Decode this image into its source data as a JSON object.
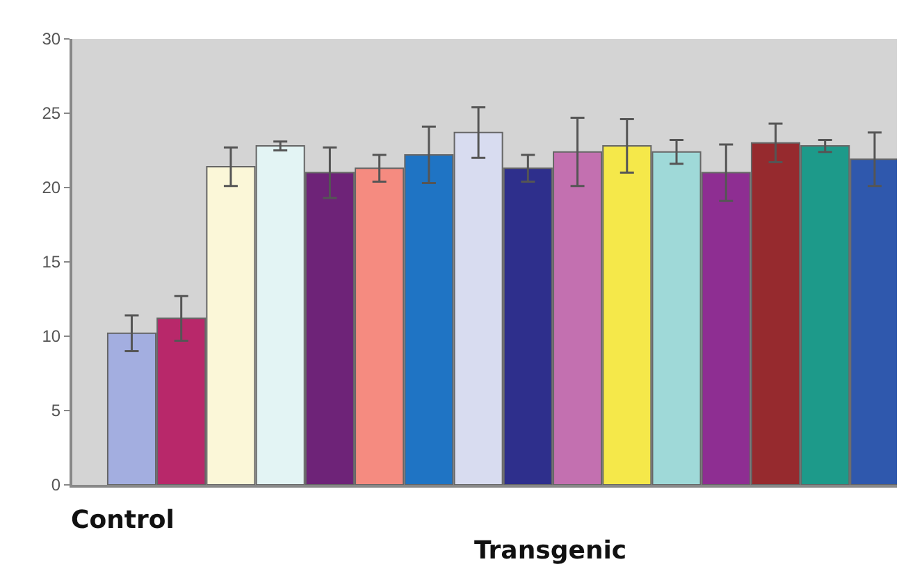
{
  "chart_data": {
    "type": "bar",
    "categories": [
      null,
      null,
      null,
      null,
      null,
      null,
      null,
      null,
      null,
      null,
      null,
      null,
      null,
      null,
      null,
      null
    ],
    "values": [
      10.2,
      11.2,
      21.4,
      22.8,
      21.0,
      21.3,
      22.2,
      23.7,
      21.3,
      22.4,
      22.8,
      22.4,
      21.0,
      23.0,
      22.8,
      21.9
    ],
    "errors": [
      1.2,
      1.5,
      1.3,
      0.3,
      1.7,
      0.9,
      1.9,
      1.7,
      0.9,
      2.3,
      1.8,
      0.8,
      1.9,
      1.3,
      0.4,
      1.8
    ],
    "colors": [
      "#a3aee0",
      "#b8286a",
      "#fbf7d8",
      "#e3f4f4",
      "#6e2378",
      "#f58b80",
      "#1f74c4",
      "#d8dcf0",
      "#2e2f8c",
      "#c370b0",
      "#f5e84a",
      "#9fd9d8",
      "#8e2e92",
      "#962a2e",
      "#1d9a8a",
      "#2f58ad"
    ],
    "ylim": [
      0,
      30
    ],
    "yticks": [
      0,
      5,
      10,
      15,
      20,
      25,
      30
    ],
    "grid": false,
    "legend": false,
    "tick_labels": "y",
    "annotations": [
      "Control",
      "Transgenic"
    ]
  }
}
